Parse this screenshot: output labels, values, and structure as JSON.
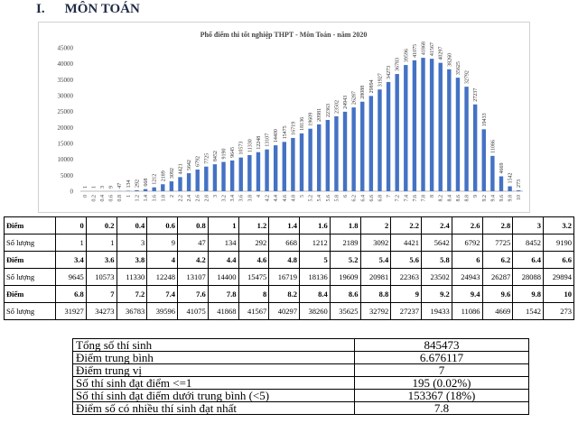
{
  "heading": {
    "number": "I.",
    "title": "MÔN TOÁN"
  },
  "chart_data": {
    "type": "bar",
    "title": "Phổ điểm thi tốt nghiệp THPT - Môn Toán - năm 2020",
    "categories": [
      "0",
      "0.2",
      "0.4",
      "0.6",
      "0.8",
      "1",
      "1.2",
      "1.4",
      "1.6",
      "1.8",
      "2",
      "2.2",
      "2.4",
      "2.6",
      "2.8",
      "3",
      "3.2",
      "3.4",
      "3.6",
      "3.8",
      "4",
      "4.2",
      "4.4",
      "4.6",
      "4.8",
      "5",
      "5.2",
      "5.4",
      "5.6",
      "5.8",
      "6",
      "6.2",
      "6.4",
      "6.6",
      "6.8",
      "7",
      "7.2",
      "7.4",
      "7.6",
      "7.8",
      "8",
      "8.2",
      "8.4",
      "8.6",
      "8.8",
      "9",
      "9.2",
      "9.4",
      "9.6",
      "9.8",
      "10"
    ],
    "values": [
      1,
      1,
      3,
      9,
      47,
      134,
      292,
      668,
      1212,
      2189,
      3092,
      4421,
      5642,
      6792,
      7725,
      8452,
      9190,
      9645,
      10573,
      11330,
      12248,
      13107,
      14400,
      15475,
      16719,
      18136,
      19609,
      20981,
      22363,
      23502,
      24943,
      26287,
      28088,
      29894,
      31927,
      34273,
      36783,
      39596,
      41075,
      41868,
      41567,
      40297,
      38260,
      35625,
      32792,
      27237,
      19433,
      11086,
      4669,
      1542,
      273
    ],
    "color": "#4472c4",
    "ylim": [
      0,
      45000
    ],
    "yticks": [
      0,
      5000,
      10000,
      15000,
      20000,
      25000,
      30000,
      35000,
      40000,
      45000
    ]
  },
  "score_table": {
    "rows": [
      [
        "Điểm",
        0,
        0.2,
        0.4,
        0.6,
        0.8,
        1,
        1.2,
        1.4,
        1.6,
        1.8,
        2,
        2.2,
        2.4,
        2.6,
        2.8,
        3,
        3.2
      ],
      [
        "Số lượng",
        1,
        1,
        3,
        9,
        47,
        134,
        292,
        668,
        1212,
        2189,
        3092,
        4421,
        5642,
        6792,
        7725,
        8452,
        9190
      ],
      [
        "Điểm",
        3.4,
        3.6,
        3.8,
        4,
        4.2,
        4.4,
        4.6,
        4.8,
        5,
        5.2,
        5.4,
        5.6,
        5.8,
        6,
        6.2,
        6.4,
        6.6
      ],
      [
        "Số lượng",
        9645,
        10573,
        11330,
        12248,
        13107,
        14400,
        15475,
        16719,
        18136,
        19609,
        20981,
        22363,
        23502,
        24943,
        26287,
        28088,
        29894
      ],
      [
        "Điểm",
        6.8,
        7,
        7.2,
        7.4,
        7.6,
        7.8,
        8,
        8.2,
        8.4,
        8.6,
        8.8,
        9,
        9.2,
        9.4,
        9.6,
        9.8,
        10
      ],
      [
        "Số lượng",
        31927,
        34273,
        36783,
        39596,
        41075,
        41868,
        41567,
        40297,
        38260,
        35625,
        32792,
        27237,
        19433,
        11086,
        4669,
        1542,
        273
      ]
    ]
  },
  "summary_table": {
    "rows": [
      [
        "Tổng số thí sinh",
        845473
      ],
      [
        "Điểm trung bình",
        6.676117
      ],
      [
        "Điểm trung vị",
        7
      ],
      [
        "Số thí sinh đạt điểm <=1",
        "195 (0.02%)"
      ],
      [
        "Số thí sinh đạt điểm dưới trung bình (<5)",
        "153367 (18%)"
      ],
      [
        "Điểm số có nhiều thí sinh đạt nhất",
        7.8
      ]
    ]
  }
}
